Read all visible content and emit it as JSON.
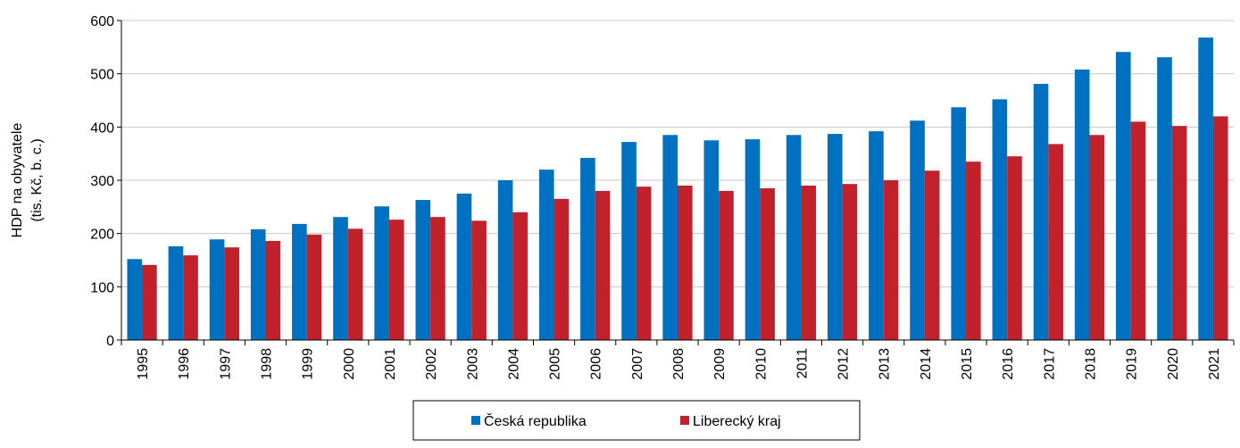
{
  "chart_data": {
    "type": "bar",
    "y_label": [
      "HDP na obyvatele",
      "(tis. Kč, b. c.)"
    ],
    "categories": [
      "1995",
      "1996",
      "1997",
      "1998",
      "1999",
      "2000",
      "2001",
      "2002",
      "2003",
      "2004",
      "2005",
      "2006",
      "2007",
      "2008",
      "2009",
      "2010",
      "2011",
      "2012",
      "2013",
      "2014",
      "2015",
      "2016",
      "2017",
      "2018",
      "2019",
      "2020",
      "2021"
    ],
    "series": [
      {
        "name": "Česká republika",
        "color": "#0070c0",
        "values": [
          152,
          176,
          189,
          208,
          218,
          231,
          251,
          263,
          275,
          300,
          320,
          342,
          372,
          385,
          375,
          377,
          385,
          387,
          392,
          412,
          437,
          452,
          481,
          508,
          541,
          531,
          568
        ]
      },
      {
        "name": "Liberecký kraj",
        "color": "#c0212a",
        "values": [
          141,
          159,
          174,
          186,
          198,
          209,
          226,
          231,
          224,
          240,
          265,
          280,
          288,
          290,
          280,
          285,
          290,
          293,
          300,
          318,
          335,
          345,
          368,
          385,
          410,
          402,
          420
        ]
      }
    ],
    "ylim": [
      0,
      600
    ],
    "yticks": [
      0,
      100,
      200,
      300,
      400,
      500,
      600
    ],
    "grid": true,
    "legend": "bottom"
  }
}
